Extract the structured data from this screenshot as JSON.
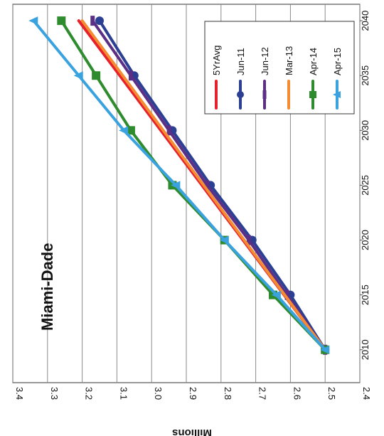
{
  "chart_data": {
    "type": "line",
    "title": "Miami-Dade",
    "ylabel": "Millions",
    "xlabel": "",
    "x": [
      2010,
      2015,
      2020,
      2025,
      2030,
      2035,
      2040
    ],
    "xticks": [
      2010,
      2015,
      2020,
      2025,
      2030,
      2035,
      2040
    ],
    "yticks": [
      2.4,
      2.5,
      2.6,
      2.7,
      2.8,
      2.9,
      3.0,
      3.1,
      3.2,
      3.3,
      3.4
    ],
    "ylim": [
      2.4,
      3.4
    ],
    "xlim": [
      2007,
      2041.5
    ],
    "grid": true,
    "legend_position": "top-right",
    "series": [
      {
        "name": "5YrAvg",
        "color": "#e8202a",
        "marker": "none",
        "x": [
          2010,
          2040
        ],
        "values": [
          2.5,
          3.21
        ]
      },
      {
        "name": "Jun-11",
        "color": "#2b3f93",
        "marker": "circle",
        "x": [
          2010,
          2015,
          2020,
          2025,
          2030,
          2035,
          2040
        ],
        "values": [
          2.5,
          2.6,
          2.71,
          2.83,
          2.94,
          3.05,
          3.15
        ]
      },
      {
        "name": "Jun-12",
        "color": "#5b2f86",
        "marker": "dash",
        "x": [
          2010,
          2015,
          2020,
          2025,
          2030,
          2035,
          2040
        ],
        "values": [
          2.5,
          2.61,
          2.72,
          2.84,
          2.95,
          3.06,
          3.17
        ]
      },
      {
        "name": "Mar-13",
        "color": "#f58b32",
        "marker": "none",
        "x": [
          2010,
          2040
        ],
        "values": [
          2.5,
          3.2
        ]
      },
      {
        "name": "Apr-14",
        "color": "#2e8b2e",
        "marker": "square",
        "x": [
          2010,
          2015,
          2020,
          2025,
          2030,
          2035,
          2040
        ],
        "values": [
          2.5,
          2.65,
          2.79,
          2.94,
          3.06,
          3.16,
          3.26
        ]
      },
      {
        "name": "Apr-15",
        "color": "#3aa3df",
        "marker": "triangle",
        "x": [
          2010,
          2015,
          2020,
          2025,
          2030,
          2035,
          2040
        ],
        "values": [
          2.5,
          2.64,
          2.79,
          2.93,
          3.08,
          3.21,
          3.34
        ]
      }
    ]
  }
}
